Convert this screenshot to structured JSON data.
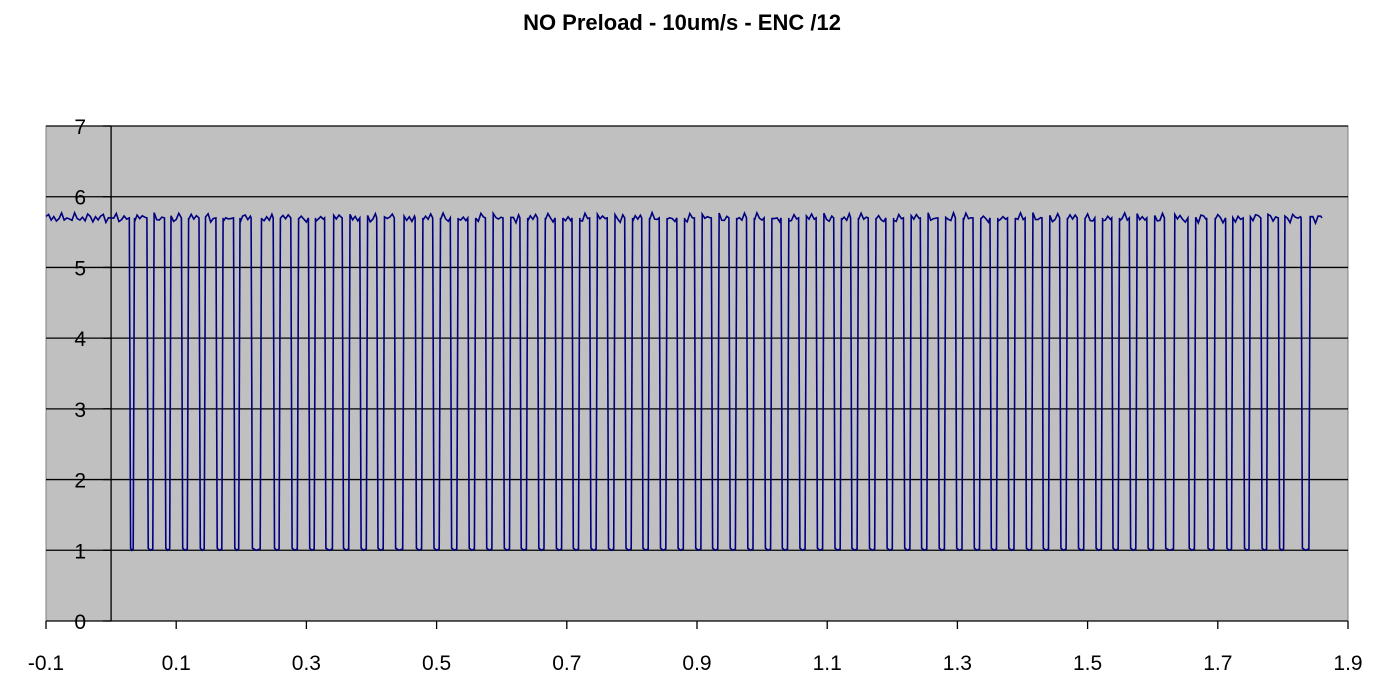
{
  "chart_data": {
    "type": "line",
    "title": "NO Preload - 10um/s - ENC /12",
    "xlabel": "",
    "ylabel": "",
    "xlim": [
      -0.1,
      1.9
    ],
    "ylim": [
      0,
      7
    ],
    "x_ticks": [
      "-0.1",
      "0.1",
      "0.3",
      "0.5",
      "0.7",
      "0.9",
      "1.1",
      "1.3",
      "1.5",
      "1.7",
      "1.9"
    ],
    "y_ticks": [
      "0",
      "1",
      "2",
      "3",
      "4",
      "5",
      "6",
      "7"
    ],
    "grid": "horizontal",
    "legend": "none",
    "colors": {
      "plot_bg": "#c0c0c0",
      "line": "#000080",
      "grid": "#000000"
    },
    "series": [
      {
        "high_level": 5.7,
        "low_level": 1.0,
        "signal_start": -0.1,
        "signal_end": 1.86,
        "pulses": [
          [
            0.028,
            0.036
          ],
          [
            0.055,
            0.066
          ],
          [
            0.082,
            0.092
          ],
          [
            0.108,
            0.119
          ],
          [
            0.135,
            0.145
          ],
          [
            0.161,
            0.172
          ],
          [
            0.188,
            0.198
          ],
          [
            0.215,
            0.231
          ],
          [
            0.249,
            0.26
          ],
          [
            0.276,
            0.288
          ],
          [
            0.303,
            0.314
          ],
          [
            0.328,
            0.342
          ],
          [
            0.355,
            0.367
          ],
          [
            0.382,
            0.394
          ],
          [
            0.408,
            0.42
          ],
          [
            0.435,
            0.45
          ],
          [
            0.467,
            0.479
          ],
          [
            0.494,
            0.506
          ],
          [
            0.521,
            0.533
          ],
          [
            0.548,
            0.56
          ],
          [
            0.575,
            0.587
          ],
          [
            0.602,
            0.614
          ],
          [
            0.628,
            0.64
          ],
          [
            0.655,
            0.667
          ],
          [
            0.682,
            0.694
          ],
          [
            0.708,
            0.72
          ],
          [
            0.735,
            0.747
          ],
          [
            0.762,
            0.774
          ],
          [
            0.789,
            0.801
          ],
          [
            0.815,
            0.827
          ],
          [
            0.842,
            0.854
          ],
          [
            0.869,
            0.881
          ],
          [
            0.896,
            0.908
          ],
          [
            0.922,
            0.934
          ],
          [
            0.949,
            0.961
          ],
          [
            0.976,
            0.988
          ],
          [
            1.003,
            1.015
          ],
          [
            1.029,
            1.041
          ],
          [
            1.056,
            1.068
          ],
          [
            1.083,
            1.095
          ],
          [
            1.11,
            1.122
          ],
          [
            1.136,
            1.148
          ],
          [
            1.163,
            1.175
          ],
          [
            1.19,
            1.202
          ],
          [
            1.217,
            1.229
          ],
          [
            1.243,
            1.255
          ],
          [
            1.27,
            1.282
          ],
          [
            1.297,
            1.309
          ],
          [
            1.324,
            1.336
          ],
          [
            1.35,
            1.362
          ],
          [
            1.377,
            1.389
          ],
          [
            1.404,
            1.416
          ],
          [
            1.43,
            1.442
          ],
          [
            1.457,
            1.469
          ],
          [
            1.484,
            1.496
          ],
          [
            1.511,
            1.523
          ],
          [
            1.537,
            1.549
          ],
          [
            1.564,
            1.576
          ],
          [
            1.591,
            1.603
          ],
          [
            1.618,
            1.634
          ],
          [
            1.654,
            1.666
          ],
          [
            1.683,
            1.696
          ],
          [
            1.712,
            1.723
          ],
          [
            1.739,
            1.75
          ],
          [
            1.766,
            1.777
          ],
          [
            1.793,
            1.803
          ],
          [
            1.828,
            1.842
          ]
        ]
      }
    ]
  }
}
